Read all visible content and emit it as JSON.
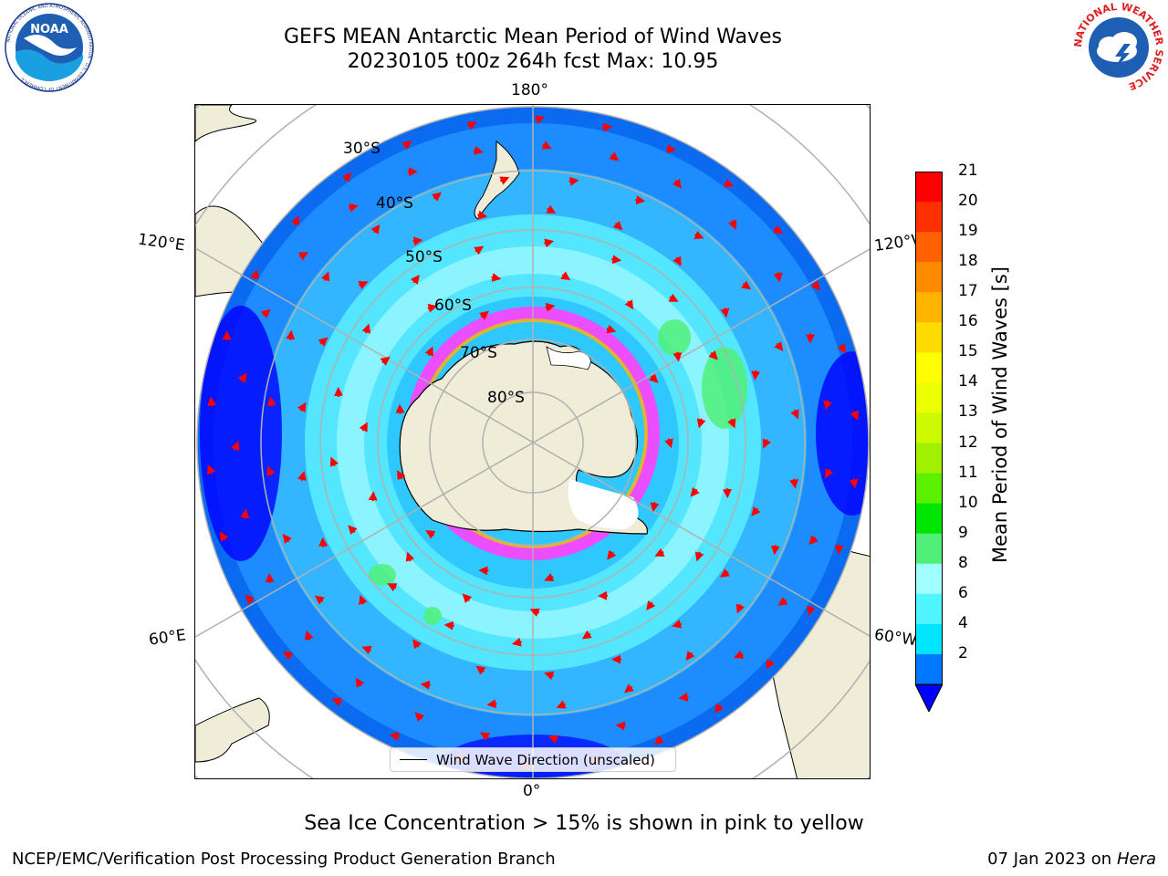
{
  "title": {
    "line1": "GEFS MEAN Antarctic Mean Period of Wind Waves",
    "line2": "20230105 t00z 264h fcst   Max: 10.95"
  },
  "logos": {
    "left": "NOAA",
    "left_ring_text": "NATIONAL OCEANIC AND ATMOSPHERIC ADMINISTRATION · U.S. DEPARTMENT OF COMMERCE",
    "right_ring_text": "NATIONAL WEATHER SERVICE"
  },
  "map": {
    "longitude_labels": {
      "top": "180°",
      "bottom": "0°",
      "upper_left": "120°E",
      "upper_right": "120°W",
      "lower_left": "60°E",
      "lower_right": "60°W"
    },
    "latitude_labels": [
      "30°S",
      "40°S",
      "50°S",
      "60°S",
      "70°S",
      "80°S"
    ],
    "legend_label": "Wind Wave Direction (unscaled)",
    "colors": {
      "land": "#efedd8",
      "gridline": "#b0b0b0",
      "arrow": "#ff0000"
    }
  },
  "colorbar": {
    "title": "Mean Period of Wind Waves [s]",
    "ticks": [
      "21",
      "20",
      "19",
      "18",
      "17",
      "16",
      "15",
      "14",
      "13",
      "12",
      "11",
      "10",
      "9",
      "8",
      "6",
      "4",
      "2"
    ],
    "colors": [
      "#ff0000",
      "#ff3000",
      "#ff6000",
      "#ff8c00",
      "#ffb400",
      "#ffdc00",
      "#ffff00",
      "#ecff00",
      "#cdfa00",
      "#a0f000",
      "#5af000",
      "#00e600",
      "#50f078",
      "#a0ffff",
      "#50f5ff",
      "#00e6ff",
      "#0078ff"
    ],
    "under_color": "#0000ff"
  },
  "caption": "Sea Ice Concentration > 15% is shown in pink to yellow",
  "footer": {
    "left": "NCEP/EMC/Verification Post Processing Product Generation Branch",
    "right_date": "07 Jan 2023 on",
    "right_machine": "Hera"
  }
}
